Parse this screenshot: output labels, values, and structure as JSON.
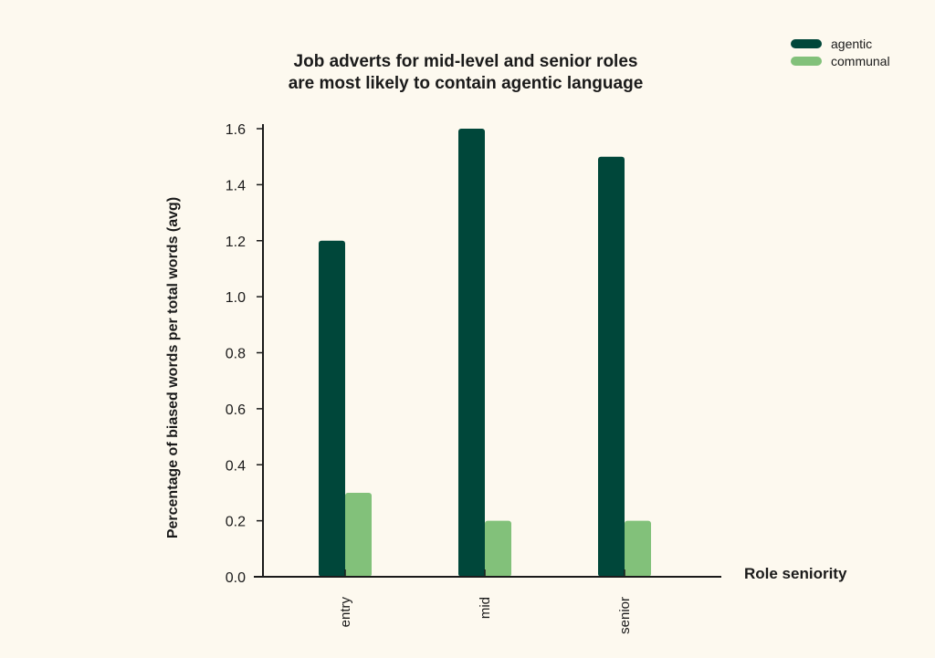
{
  "chart_data": {
    "type": "bar",
    "title": "Job adverts for mid-level and senior roles are most likely to contain agentic language",
    "title_lines": [
      "Job adverts for mid-level and senior roles",
      "are most likely to contain agentic language"
    ],
    "xlabel": "Role seniority",
    "ylabel": "Percentage of biased words per total words (avg)",
    "categories": [
      "entry",
      "mid",
      "senior"
    ],
    "series": [
      {
        "name": "agentic",
        "values": [
          1.2,
          1.6,
          1.5
        ],
        "color": "#00473a"
      },
      {
        "name": "communal",
        "values": [
          0.3,
          0.2,
          0.2
        ],
        "color": "#82c17a"
      }
    ],
    "ylim": [
      0,
      1.6
    ],
    "yticks": [
      "0.0",
      "0.2",
      "0.4",
      "0.6",
      "0.8",
      "1.0",
      "1.2",
      "1.4",
      "1.6"
    ],
    "grid": false,
    "legend_position": "top-right"
  }
}
